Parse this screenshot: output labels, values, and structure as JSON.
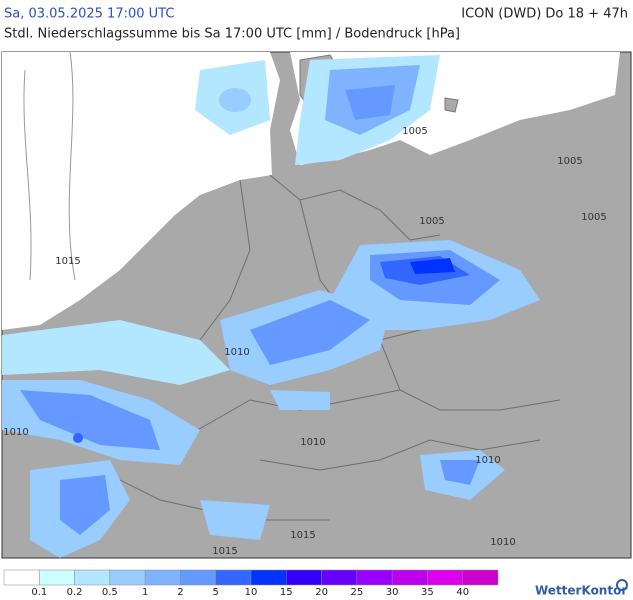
{
  "header": {
    "datetime": "Sa, 03.05.2025 17:00 UTC",
    "model_run": "ICON (DWD) Do 18 + 47h",
    "subtitle": "Stdl. Niederschlagssumme bis Sa 17:00 UTC [mm] / Bodendruck [hPa]"
  },
  "map": {
    "isobar_labels": [
      "1005",
      "1005",
      "1005",
      "1005",
      "1015",
      "1010",
      "1010",
      "1010",
      "1010",
      "1010",
      "1015",
      "1015"
    ]
  },
  "legend": {
    "colors": [
      "#ffffff",
      "#ccffff",
      "#b3e6ff",
      "#99ccff",
      "#80b3ff",
      "#6699ff",
      "#3366ff",
      "#0033ff",
      "#3300ff",
      "#6600ff",
      "#9900ff",
      "#bb00ee",
      "#dd00ee",
      "#cc00cc"
    ],
    "labels": [
      0.1,
      0.2,
      0.5,
      1,
      2,
      5,
      10,
      15,
      20,
      25,
      30,
      35,
      40
    ]
  },
  "brand": "WetterKontor"
}
